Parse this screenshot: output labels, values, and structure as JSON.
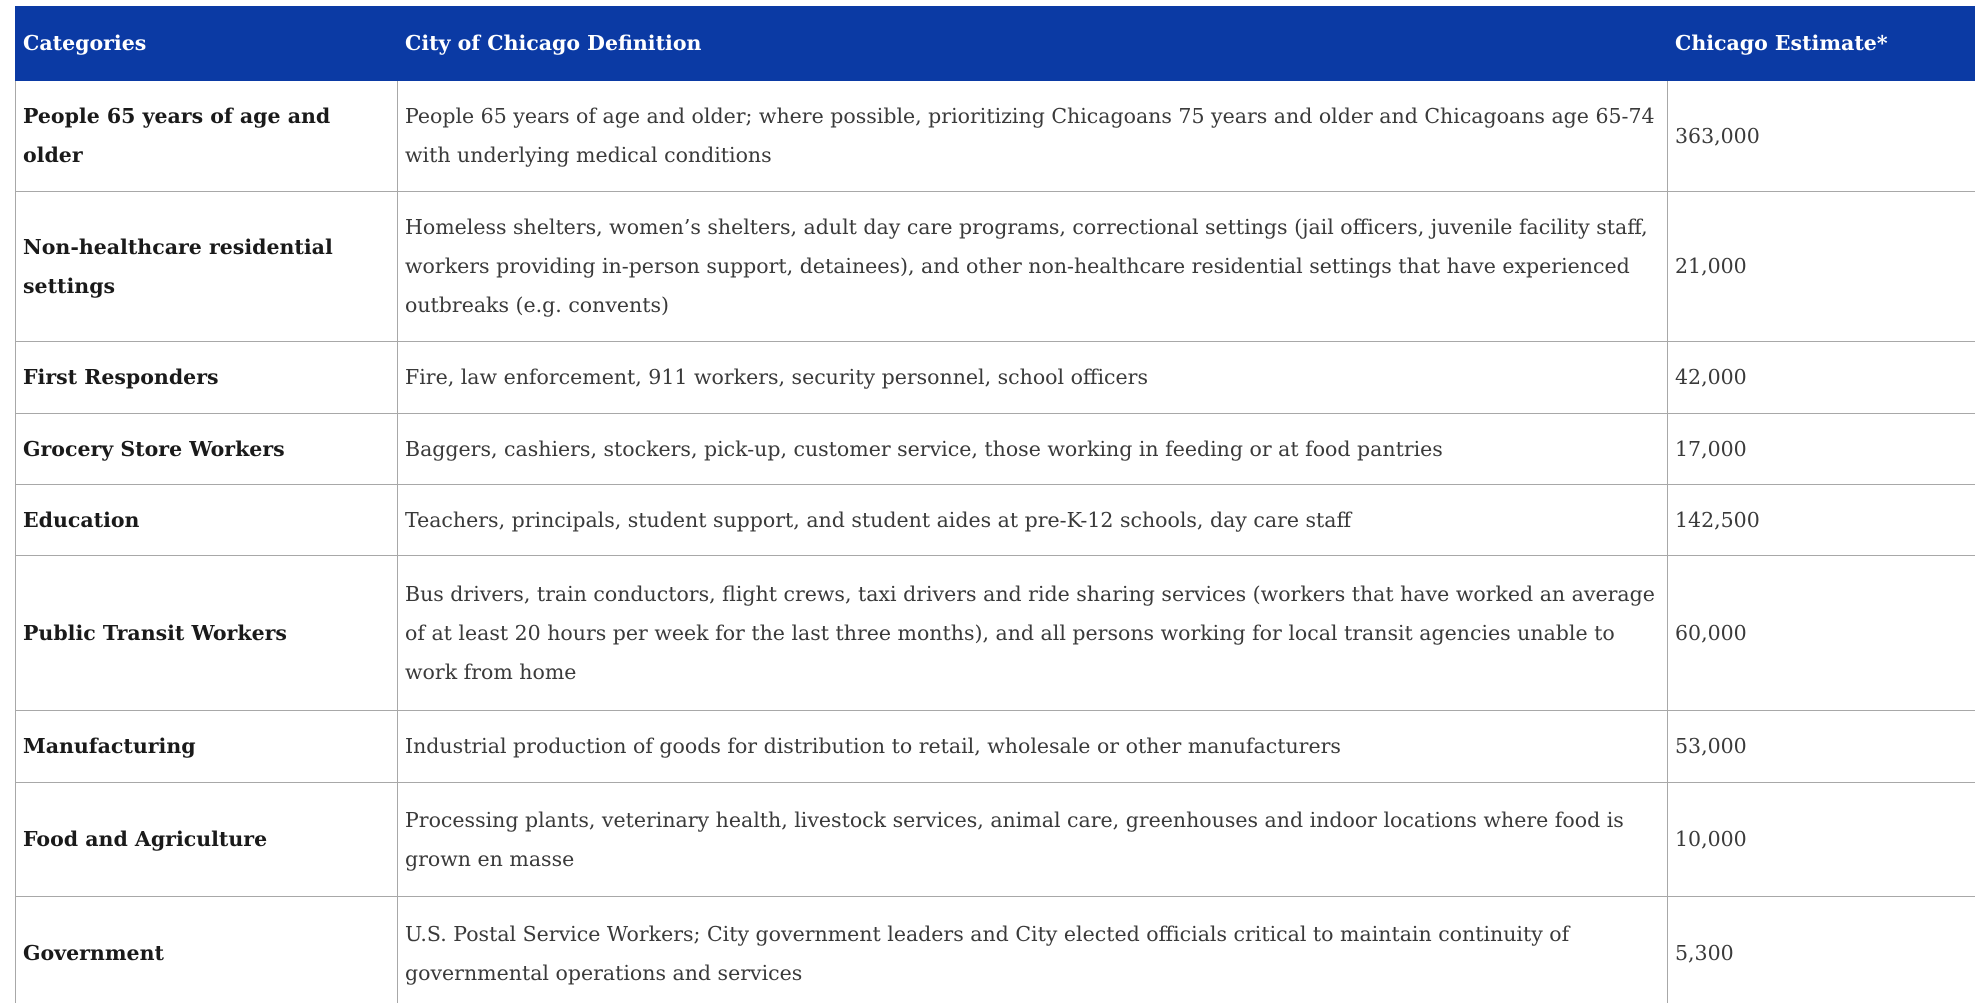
{
  "table": {
    "header": [
      "Categories",
      "City of Chicago Definition",
      "Chicago Estimate*"
    ],
    "rows": [
      [
        "People 65 years of age and older",
        "People 65 years of age and older; where possible, prioritizing Chicagoans 75 years and older and Chicagoans age 65-74 with underlying medical conditions",
        "363,000"
      ],
      [
        "Non-healthcare residential settings",
        "Homeless shelters, women’s shelters, adult day care programs, correctional settings (jail officers, juvenile facility staff, workers providing in-person support, detainees), and other non-healthcare residential settings that have experienced outbreaks (e.g. convents)",
        "21,000"
      ],
      [
        "First Responders",
        "Fire, law enforcement, 911 workers, security personnel, school officers",
        "42,000"
      ],
      [
        "Grocery Store Workers",
        "Baggers, cashiers, stockers, pick-up, customer service, those working in feeding or at food pantries",
        "17,000"
      ],
      [
        "Education",
        "Teachers, principals, student support, and student aides at pre-K-12 schools, day care staff",
        "142,500"
      ],
      [
        "Public Transit Workers",
        "Bus drivers, train conductors, flight crews, taxi drivers and ride sharing services (workers that have worked an average of at least 20 hours per week for the last three months), and all persons working for local transit agencies unable to work from home",
        "60,000"
      ],
      [
        "Manufacturing",
        "Industrial production of goods for distribution to retail, wholesale or other manufacturers",
        "53,000"
      ],
      [
        "Food and Agriculture",
        "Processing plants, veterinary health, livestock services, animal care, greenhouses and indoor locations where food is grown en masse",
        "10,000"
      ],
      [
        "Government",
        "U.S. Postal Service Workers; City government leaders and City elected officials critical to maintain continuity of governmental operations and services",
        "5,300"
      ]
    ]
  }
}
